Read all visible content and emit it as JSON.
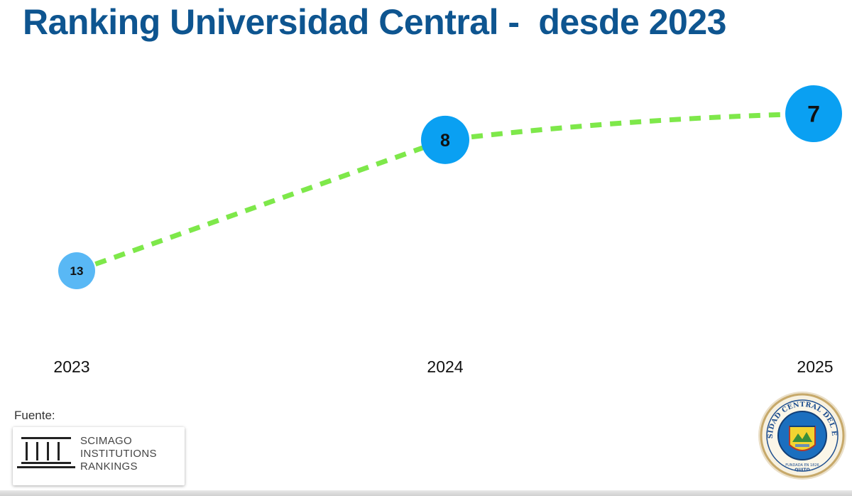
{
  "title": "Ranking Universidad Central -  desde 2023",
  "source": {
    "label": "Fuente:",
    "logo_lines": [
      "SCIMAGO",
      "INSTITUTIONS",
      "RANKINGS"
    ],
    "logo_icon": "columns-icon"
  },
  "seal": {
    "name": "UNIVERSIDAD CENTRAL DEL ECUADOR",
    "founded": "FUNDADA EN 1826",
    "city": "QUITO",
    "icon": "university-seal-icon"
  },
  "colors": {
    "title": "#0e5590",
    "line": "#7ee84a",
    "marker_light": "#59b8f5",
    "marker_dark": "#0aa0f2"
  },
  "chart_data": {
    "type": "line",
    "x": [
      "2023",
      "2024",
      "2025"
    ],
    "values": [
      13,
      8,
      7
    ],
    "data_labels": [
      "13",
      "8",
      "7"
    ],
    "line_style": "dashed",
    "y_inverted": true,
    "title": "Ranking Universidad Central -  desde 2023",
    "grid": false
  }
}
